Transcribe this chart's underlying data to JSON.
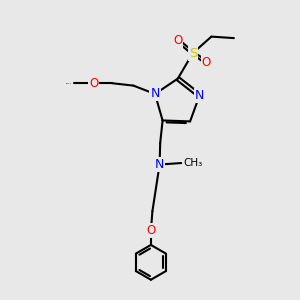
{
  "background_color": "#e8e8e8",
  "atom_colors": {
    "C": "#000000",
    "N": "#0000ff",
    "O": "#ff0000",
    "S": "#cccc00"
  },
  "bond_lw": 1.5,
  "figsize": [
    3.0,
    3.0
  ],
  "dpi": 100
}
